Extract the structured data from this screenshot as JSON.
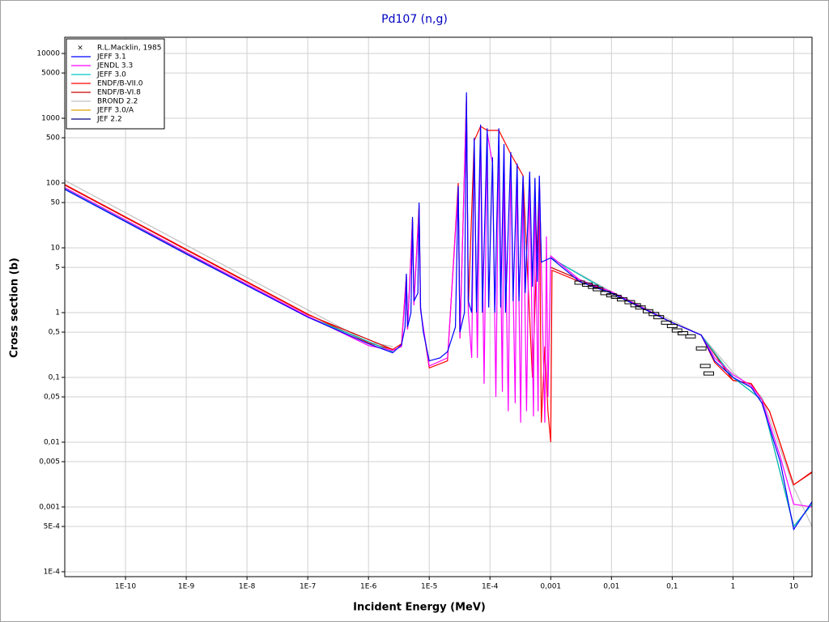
{
  "chart_data": {
    "type": "line",
    "title": "Pd107 (n,g)",
    "x_label": "Incident Energy (MeV)",
    "y_label": "Cross section (b)",
    "xscale": "log",
    "yscale": "log",
    "grid": true,
    "legend": "upper left",
    "xlim": [
      1e-11,
      20
    ],
    "ylim": [
      8.4e-05,
      17800
    ],
    "xticks": [
      {
        "value": 1e-10,
        "label": "1E-10"
      },
      {
        "value": 1e-09,
        "label": "1E-9"
      },
      {
        "value": 1e-08,
        "label": "1E-8"
      },
      {
        "value": 1e-07,
        "label": "1E-7"
      },
      {
        "value": 1e-06,
        "label": "1E-6"
      },
      {
        "value": 1e-05,
        "label": "1E-5"
      },
      {
        "value": 0.0001,
        "label": "1E-4"
      },
      {
        "value": 0.001,
        "label": "0,001"
      },
      {
        "value": 0.01,
        "label": "0,01"
      },
      {
        "value": 0.1,
        "label": "0,1"
      },
      1,
      10
    ],
    "yticks": [
      10000,
      5000,
      1000,
      500,
      100,
      50,
      10,
      5,
      1,
      {
        "value": 0.5,
        "label": "0,5"
      },
      {
        "value": 0.1,
        "label": "0,1"
      },
      {
        "value": 0.05,
        "label": "0,05"
      },
      {
        "value": 0.01,
        "label": "0,01"
      },
      {
        "value": 0.005,
        "label": "0,005"
      },
      {
        "value": 0.001,
        "label": "0,001"
      },
      {
        "value": 0.0005,
        "label": "5E-4"
      },
      {
        "value": 0.0001,
        "label": "1E-4"
      }
    ],
    "series": [
      {
        "name": "R.L.Macklin, 1985",
        "color": "#000000",
        "mode": "markers",
        "x": [
          0.003,
          0.004,
          0.005,
          0.006,
          0.008,
          0.01,
          0.012,
          0.015,
          0.02,
          0.025,
          0.03,
          0.04,
          0.05,
          0.06,
          0.08,
          0.1,
          0.12,
          0.15,
          0.2,
          0.3,
          0.35,
          0.4
        ],
        "values": [
          2.9,
          2.7,
          2.5,
          2.3,
          2.0,
          1.85,
          1.75,
          1.6,
          1.45,
          1.3,
          1.2,
          1.05,
          0.95,
          0.85,
          0.7,
          0.62,
          0.53,
          0.48,
          0.43,
          0.28,
          0.15,
          0.115
        ]
      },
      {
        "name": "JEFF 3.1",
        "color": "#0000ff",
        "x": [
          1e-11,
          1e-09,
          1e-07,
          1e-06,
          2.5e-06,
          3.5e-06,
          4e-06,
          4.2e-06,
          4.4e-06,
          5e-06,
          5.3e-06,
          5.6e-06,
          6.5e-06,
          6.8e-06,
          7.2e-06,
          8e-06,
          1e-05,
          1.5e-05,
          2e-05,
          2.7e-05,
          3e-05,
          3.2e-05,
          3.8e-05,
          4.1e-05,
          4.4e-05,
          5e-05,
          5.5e-05,
          6e-05,
          7e-05,
          7.5e-05,
          9e-05,
          9.5e-05,
          0.00011,
          0.00012,
          0.00014,
          0.00015,
          0.00017,
          0.00018,
          0.00022,
          0.00024,
          0.00028,
          0.0003,
          0.00035,
          0.00038,
          0.00045,
          0.0005,
          0.00055,
          0.0006,
          0.00065,
          0.0007,
          0.001,
          0.003,
          0.01,
          0.1,
          0.3,
          0.5,
          1,
          2,
          3,
          6,
          10,
          20
        ],
        "values": [
          80,
          8,
          0.85,
          0.33,
          0.24,
          0.32,
          0.6,
          4,
          0.6,
          1,
          30,
          1.5,
          2,
          50,
          1.2,
          0.5,
          0.18,
          0.2,
          0.25,
          0.6,
          90,
          0.5,
          1,
          2500,
          1.5,
          1,
          500,
          1,
          800,
          1,
          700,
          1.2,
          250,
          1,
          700,
          1.2,
          400,
          1,
          300,
          1.5,
          200,
          1.5,
          130,
          2,
          150,
          2.5,
          120,
          3,
          130,
          6,
          7,
          3,
          2,
          0.7,
          0.45,
          0.18,
          0.1,
          0.07,
          0.04,
          0.005,
          0.00045,
          0.0012
        ]
      },
      {
        "name": "JENDL 3.3",
        "color": "#ff00ff",
        "x": [
          1e-11,
          1e-09,
          1e-07,
          1e-06,
          2.5e-06,
          3.5e-06,
          4.2e-06,
          4.4e-06,
          5.3e-06,
          5.6e-06,
          6.8e-06,
          7.2e-06,
          1e-05,
          2e-05,
          3e-05,
          3.2e-05,
          4.1e-05,
          4.4e-05,
          5e-05,
          5.5e-05,
          6.2e-05,
          7e-05,
          8e-05,
          9e-05,
          0.00011,
          0.000125,
          0.00014,
          0.00016,
          0.00017,
          0.0002,
          0.00022,
          0.00026,
          0.00028,
          0.00032,
          0.00035,
          0.0004,
          0.00045,
          0.00052,
          0.00055,
          0.00062,
          0.00065,
          0.0008,
          0.00085,
          0.0009,
          0.001,
          0.003,
          0.01,
          0.1,
          0.3,
          0.5,
          1,
          2,
          3,
          6,
          10,
          20
        ],
        "values": [
          85,
          8.5,
          0.88,
          0.31,
          0.26,
          0.3,
          3.5,
          0.55,
          25,
          1.3,
          40,
          1.1,
          0.15,
          0.2,
          80,
          0.4,
          2000,
          1,
          0.2,
          400,
          0.2,
          700,
          0.08,
          600,
          200,
          0.05,
          600,
          0.06,
          350,
          0.03,
          250,
          0.04,
          180,
          0.02,
          120,
          0.03,
          130,
          0.025,
          110,
          0.03,
          120,
          0.02,
          15,
          0.05,
          7.5,
          3.2,
          2.1,
          0.7,
          0.45,
          0.2,
          0.11,
          0.075,
          0.045,
          0.006,
          0.0011,
          0.001
        ]
      },
      {
        "name": "JEFF 3.0",
        "color": "#00c8c8",
        "x": [
          1e-11,
          1e-07,
          2.5e-06,
          3e-06,
          0.001,
          0.01,
          0.1,
          0.3,
          1,
          3,
          10,
          20
        ],
        "values": [
          82,
          0.87,
          0.25,
          null,
          7,
          2,
          0.7,
          0.45,
          0.1,
          0.045,
          0.0005,
          0.0011
        ]
      },
      {
        "name": "ENDF/B-VII.0",
        "color": "#ff0000",
        "x": [
          1e-11,
          1e-09,
          1e-07,
          1e-06,
          2.5e-06,
          3.5e-06,
          4.2e-06,
          4.4e-06,
          5.3e-06,
          5.6e-06,
          6.8e-06,
          7.2e-06,
          1e-05,
          2e-05,
          3e-05,
          3.2e-05,
          4.1e-05,
          4.4e-05,
          5.5e-05,
          7e-05,
          9e-05,
          0.00014,
          0.00022,
          0.00035,
          0.0005,
          0.00065,
          0.0007,
          0.0008,
          0.0009,
          0.001,
          0.00105,
          0.003,
          0.01,
          0.1,
          0.3,
          0.5,
          1,
          2,
          4,
          10,
          20
        ],
        "values": [
          95,
          9.5,
          0.95,
          0.34,
          0.27,
          0.33,
          3.8,
          0.55,
          28,
          1.4,
          45,
          1.1,
          0.14,
          0.18,
          100,
          0.4,
          2200,
          1.2,
          450,
          750,
          650,
          650,
          280,
          130,
          0.1,
          100,
          0.02,
          0.3,
          0.03,
          0.01,
          4.5,
          3,
          2,
          0.7,
          0.45,
          0.17,
          0.09,
          0.08,
          0.03,
          0.0022,
          0.0035
        ]
      },
      {
        "name": "ENDF/B-VI.8",
        "color": "#c80000",
        "x": [
          1e-11,
          1e-07,
          2.5e-06,
          3e-06,
          0.001,
          0.01,
          0.1,
          0.3,
          1,
          2,
          4,
          10,
          20
        ],
        "values": [
          93,
          0.93,
          0.27,
          null,
          5,
          2,
          0.7,
          0.45,
          0.09,
          0.08,
          0.03,
          0.0022,
          0.0034
        ]
      },
      {
        "name": "BROND 2.2",
        "color": "#c0c0c0",
        "x": [
          1e-11,
          1e-07,
          1e-06,
          2.5e-06,
          3e-06,
          0.001,
          0.01,
          0.1,
          0.3,
          1,
          3,
          10,
          20
        ],
        "values": [
          110,
          1.1,
          0.35,
          0.3,
          null,
          7,
          2.1,
          0.75,
          0.45,
          0.12,
          0.05,
          0.002,
          0.0005
        ]
      },
      {
        "name": "JEFF 3.0/A",
        "color": "#e0a000",
        "x": [
          1e-11,
          1e-07,
          2.5e-06,
          3e-06,
          0.001,
          0.01,
          0.1,
          0.3,
          1,
          3,
          10,
          20
        ],
        "values": [
          82,
          0.87,
          0.25,
          null,
          7,
          2,
          0.7,
          0.45,
          0.1,
          0.045,
          0.0005,
          0.0011
        ]
      },
      {
        "name": "JEF 2.2",
        "color": "#000080",
        "x": [
          1e-11,
          1e-07,
          2.5e-06,
          3e-06,
          0.001,
          0.01,
          0.1,
          0.3,
          1,
          3,
          10,
          20
        ],
        "values": [
          81,
          0.86,
          0.25,
          null,
          7,
          2,
          0.7,
          0.45,
          0.1,
          0.045,
          0.0005,
          0.0011
        ]
      }
    ]
  }
}
